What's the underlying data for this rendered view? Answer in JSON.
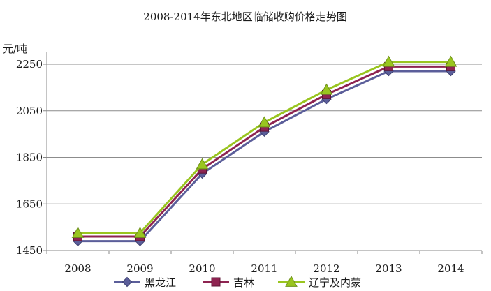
{
  "chart_data": {
    "type": "line",
    "title": "2008-2014年东北地区临储收购价格走势图",
    "ylabel": "元/吨",
    "xlabel": "",
    "categories": [
      "2008",
      "2009",
      "2010",
      "2011",
      "2012",
      "2013",
      "2014"
    ],
    "y_ticks": [
      "1450",
      "1650",
      "1850",
      "2050",
      "2250"
    ],
    "ylim": [
      1450,
      2250
    ],
    "grid": "horizontal",
    "legend_position": "bottom",
    "series": [
      {
        "name": "黑龙江",
        "values": [
          1490,
          1490,
          1780,
          1960,
          2100,
          2220,
          2220
        ],
        "color": "#5b5e9a",
        "marker": "diamond"
      },
      {
        "name": "吉林",
        "values": [
          1510,
          1510,
          1800,
          1980,
          2120,
          2240,
          2240
        ],
        "color": "#8e2451",
        "marker": "square"
      },
      {
        "name": "辽宁及内蒙",
        "values": [
          1525,
          1525,
          1820,
          2000,
          2140,
          2260,
          2260
        ],
        "color": "#99c51f",
        "marker": "triangle"
      }
    ]
  }
}
